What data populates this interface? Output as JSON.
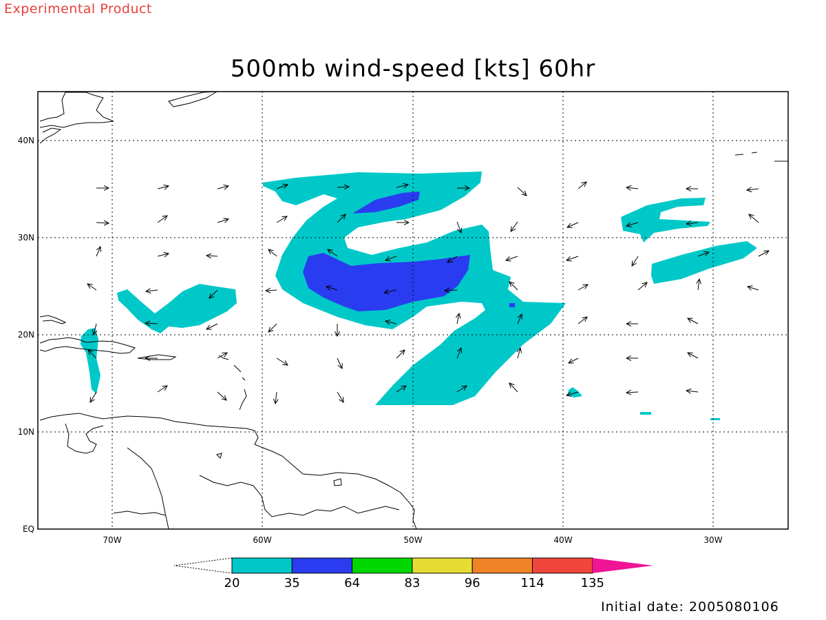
{
  "header": {
    "product_label": "Experimental Product",
    "title": "500mb wind-speed [kts] 60hr"
  },
  "footer": {
    "initial_date": "Initial date: 2005080106"
  },
  "map": {
    "lat_labels": [
      "EQ",
      "10N",
      "20N",
      "30N",
      "40N"
    ],
    "lon_labels": [
      "70W",
      "60W",
      "50W",
      "40W",
      "30W"
    ]
  },
  "colorbar": {
    "levels": [
      "20",
      "35",
      "64",
      "83",
      "96",
      "114",
      "135"
    ],
    "colors": [
      "#00c8c8",
      "#2a3cf0",
      "#00d800",
      "#e6dc32",
      "#f08228",
      "#f0463c",
      "#f01496"
    ]
  }
}
